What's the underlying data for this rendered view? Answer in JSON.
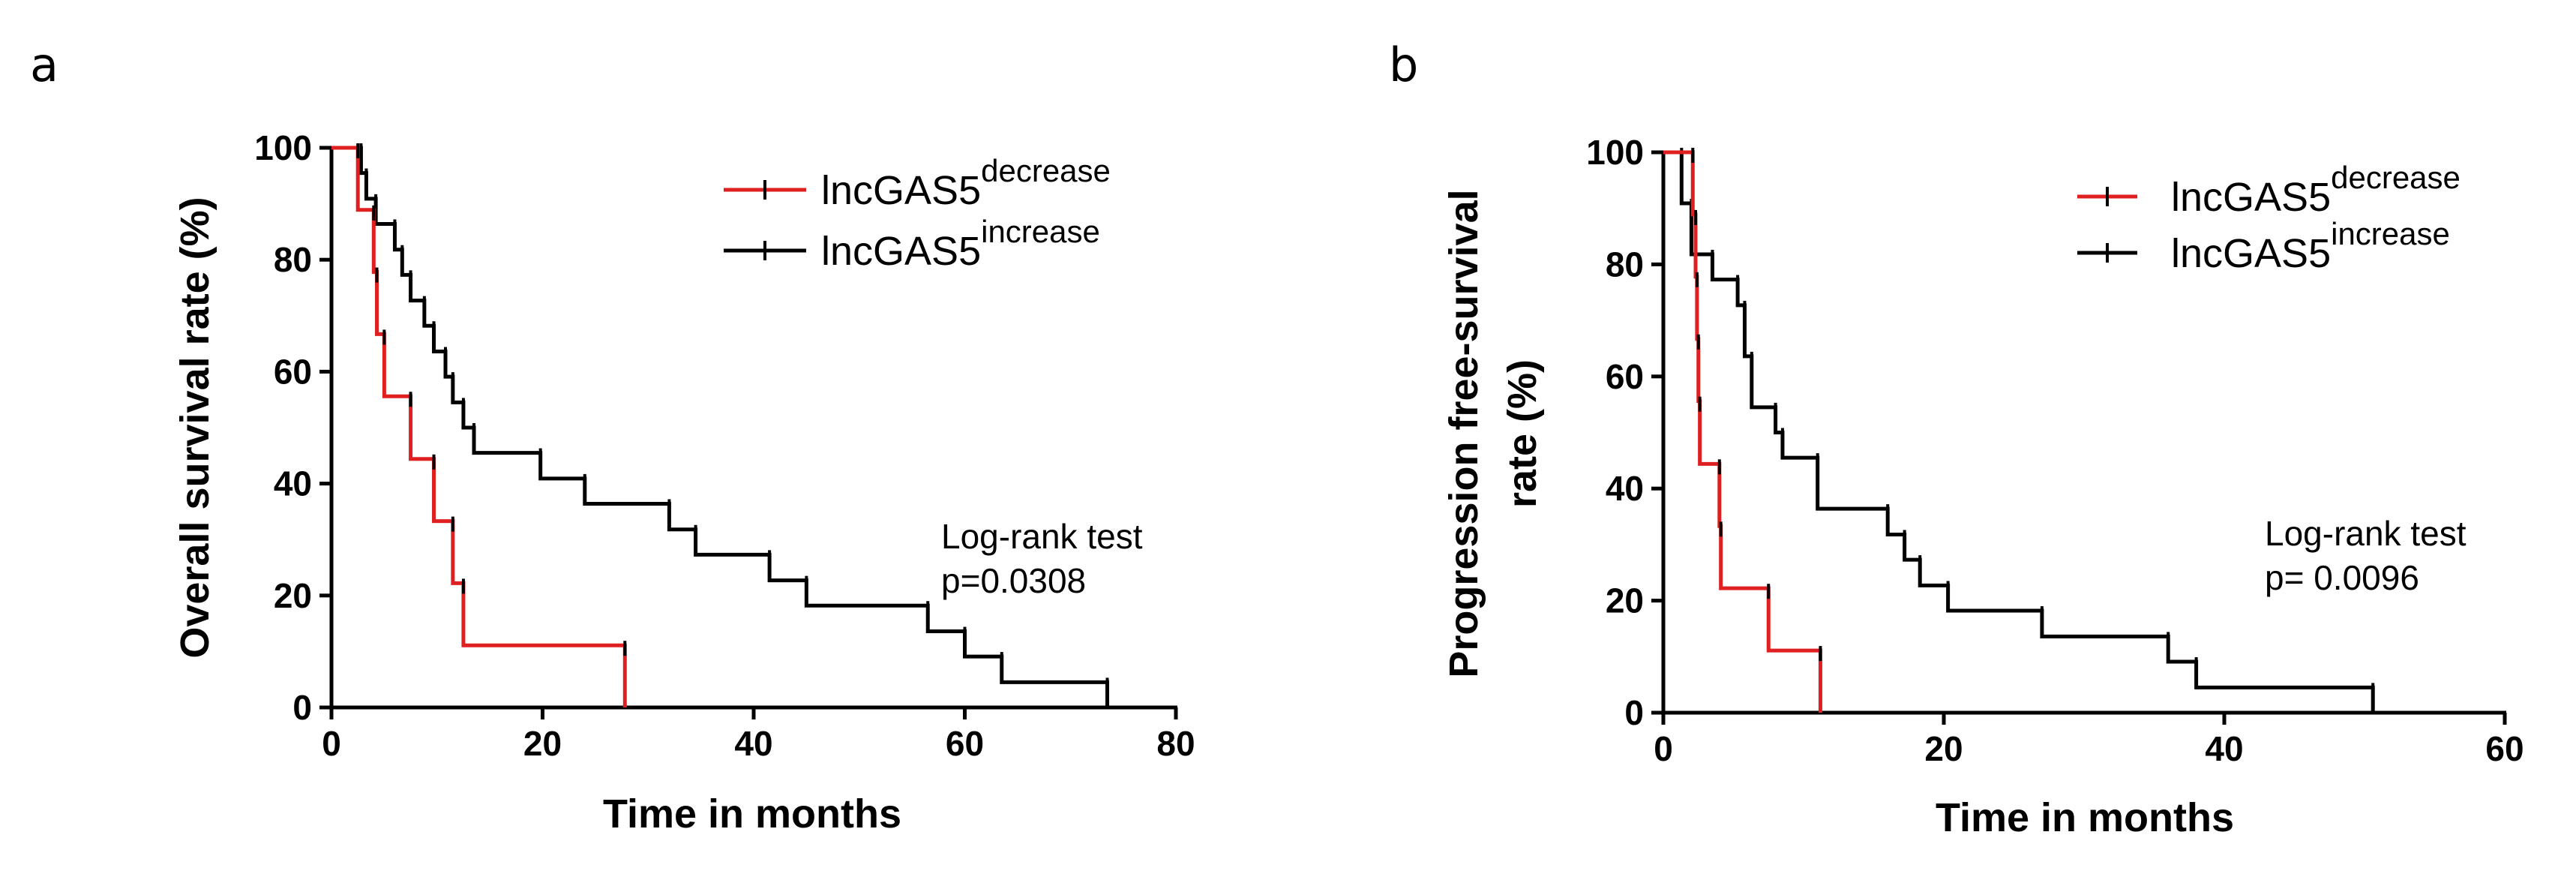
{
  "chart_data": [
    {
      "type": "line",
      "subtype": "kaplan-meier",
      "panel_label": "a",
      "xlabel": "Time in months",
      "ylabel": "Overall survival rate (%)",
      "xlim": [
        0,
        80
      ],
      "ylim": [
        0,
        100
      ],
      "xticks": [
        "0",
        "20",
        "40",
        "60",
        "80"
      ],
      "yticks": [
        "0",
        "20",
        "40",
        "60",
        "80",
        "100"
      ],
      "annotation": [
        "Log-rank test",
        "p=0.0308"
      ],
      "legend_position": "top-right",
      "series": [
        {
          "name": "lncGAS5",
          "name_sup": "decrease",
          "color": "#e02020",
          "steps": [
            [
              0,
              100
            ],
            [
              2.5,
              88.9
            ],
            [
              4,
              77.8
            ],
            [
              4.3,
              66.7
            ],
            [
              5,
              55.6
            ],
            [
              7.5,
              44.4
            ],
            [
              9.7,
              33.3
            ],
            [
              11.5,
              22.2
            ],
            [
              12.5,
              11.1
            ],
            [
              27.8,
              0
            ]
          ]
        },
        {
          "name": "lncGAS5",
          "name_sup": "increase",
          "color": "#000000",
          "steps": [
            [
              0,
              100
            ],
            [
              2.8,
              95.5
            ],
            [
              3.3,
              90.9
            ],
            [
              4.2,
              86.4
            ],
            [
              6,
              81.8
            ],
            [
              6.7,
              77.3
            ],
            [
              7.5,
              72.7
            ],
            [
              8.8,
              68.2
            ],
            [
              9.7,
              63.6
            ],
            [
              10.8,
              59.1
            ],
            [
              11.5,
              54.5
            ],
            [
              12.5,
              50
            ],
            [
              13.5,
              45.5
            ],
            [
              19.8,
              40.9
            ],
            [
              24,
              36.4
            ],
            [
              32,
              31.8
            ],
            [
              34.5,
              27.3
            ],
            [
              41.5,
              22.7
            ],
            [
              45,
              18.2
            ],
            [
              56.5,
              13.6
            ],
            [
              60,
              9.1
            ],
            [
              63.5,
              4.5
            ],
            [
              73.5,
              0
            ]
          ]
        }
      ]
    },
    {
      "type": "line",
      "subtype": "kaplan-meier",
      "panel_label": "b",
      "xlabel": "Time in months",
      "ylabel": "Progression free-survival rate  (%)",
      "ylabel_lines": [
        "Progression free-survival",
        "rate  (%)"
      ],
      "xlim": [
        0,
        60
      ],
      "ylim": [
        0,
        100
      ],
      "xticks": [
        "0",
        "20",
        "40",
        "60"
      ],
      "yticks": [
        "0",
        "20",
        "40",
        "60",
        "80",
        "100"
      ],
      "annotation": [
        "Log-rank test",
        "p= 0.0096"
      ],
      "legend_position": "top-right",
      "series": [
        {
          "name": "lncGAS5",
          "name_sup": "decrease",
          "color": "#e02020",
          "steps": [
            [
              0,
              100
            ],
            [
              2.1,
              88.9
            ],
            [
              2.3,
              77.8
            ],
            [
              2.4,
              66.7
            ],
            [
              2.5,
              55.6
            ],
            [
              2.6,
              44.4
            ],
            [
              4,
              33.3
            ],
            [
              4.1,
              22.2
            ],
            [
              7.5,
              11.1
            ],
            [
              11.2,
              0
            ]
          ]
        },
        {
          "name": "lncGAS5",
          "name_sup": "increase",
          "color": "#000000",
          "steps": [
            [
              0,
              100
            ],
            [
              1.3,
              90.9
            ],
            [
              2,
              81.8
            ],
            [
              3.5,
              77.3
            ],
            [
              5.3,
              72.7
            ],
            [
              5.8,
              63.6
            ],
            [
              6.3,
              54.5
            ],
            [
              8,
              50
            ],
            [
              8.5,
              45.5
            ],
            [
              11,
              36.4
            ],
            [
              16,
              31.8
            ],
            [
              17.2,
              27.3
            ],
            [
              18.3,
              22.7
            ],
            [
              20.3,
              18.2
            ],
            [
              27,
              13.6
            ],
            [
              36,
              9.1
            ],
            [
              38,
              4.5
            ],
            [
              50.6,
              0
            ]
          ]
        }
      ]
    }
  ]
}
